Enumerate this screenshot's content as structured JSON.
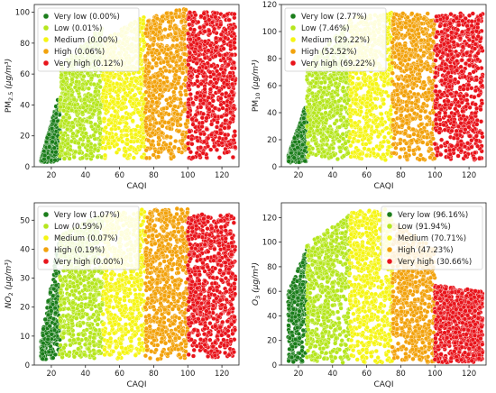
{
  "chart_data": [
    {
      "type": "scatter",
      "xlabel": "CAQI",
      "ylabel": "PM2.5 (μg/m³)",
      "ylabel_main": "PM",
      "ylabel_sub": "2.5",
      "ylabel_unit": " (μg/m³)",
      "xlim": [
        10,
        130
      ],
      "ylim": [
        0,
        105
      ],
      "xticks": [
        "20",
        "40",
        "60",
        "80",
        "100",
        "120"
      ],
      "yticks": [
        "0",
        "20",
        "40",
        "60",
        "80",
        "100"
      ],
      "legend_position": "top-left",
      "categories": [
        {
          "name": "Very low",
          "percent": "(0.00%)",
          "color": "#1a7d1a",
          "x": [
            14,
            25
          ],
          "ymin": 3,
          "ymax_start": 5,
          "ymax_end": 48
        },
        {
          "name": "Low",
          "percent": "(0.01%)",
          "color": "#b5e61d",
          "x": [
            25,
            50
          ],
          "ymin": 5,
          "ymax_start": 65,
          "ymax_end": 92
        },
        {
          "name": "Medium",
          "percent": "(0.00%)",
          "color": "#f5f514",
          "x": [
            50,
            75
          ],
          "ymin": 5,
          "ymax_start": 82,
          "ymax_end": 98
        },
        {
          "name": "High",
          "percent": "(0.06%)",
          "color": "#f2a20c",
          "x": [
            75,
            100
          ],
          "ymin": 5,
          "ymax_start": 96,
          "ymax_end": 103
        },
        {
          "name": "Very high",
          "percent": "(0.12%)",
          "color": "#e8141b",
          "x": [
            100,
            128
          ],
          "ymin": 5,
          "ymax_start": 100,
          "ymax_end": 100
        }
      ]
    },
    {
      "type": "scatter",
      "xlabel": "CAQI",
      "ylabel": "PM10 (μg/m³)",
      "ylabel_main": "PM",
      "ylabel_sub": "10",
      "ylabel_unit": " (μg/m³)",
      "xlim": [
        10,
        130
      ],
      "ylim": [
        0,
        120
      ],
      "xticks": [
        "20",
        "40",
        "60",
        "80",
        "100",
        "120"
      ],
      "yticks": [
        "0",
        "20",
        "40",
        "60",
        "80",
        "100",
        "120"
      ],
      "legend_position": "top-left",
      "categories": [
        {
          "name": "Very low",
          "percent": "(2.77%)",
          "color": "#1a7d1a",
          "x": [
            14,
            25
          ],
          "ymin": 3,
          "ymax_start": 8,
          "ymax_end": 48
        },
        {
          "name": "Low",
          "percent": "(7.46%)",
          "color": "#b5e61d",
          "x": [
            25,
            50
          ],
          "ymin": 5,
          "ymax_start": 75,
          "ymax_end": 108
        },
        {
          "name": "Medium",
          "percent": "(29.22%)",
          "color": "#f5f514",
          "x": [
            50,
            75
          ],
          "ymin": 5,
          "ymax_start": 110,
          "ymax_end": 114
        },
        {
          "name": "High",
          "percent": "(52.52%)",
          "color": "#f2a20c",
          "x": [
            75,
            100
          ],
          "ymin": 5,
          "ymax_start": 114,
          "ymax_end": 114
        },
        {
          "name": "Very high",
          "percent": "(69.22%)",
          "color": "#e8141b",
          "x": [
            100,
            128
          ],
          "ymin": 5,
          "ymax_start": 114,
          "ymax_end": 114
        }
      ]
    },
    {
      "type": "scatter",
      "xlabel": "CAQI",
      "ylabel": "NO2 (μg/m³)",
      "ylabel_main": "NO",
      "ylabel_sub": "2",
      "ylabel_unit": " (μg/m³)",
      "xlim": [
        10,
        130
      ],
      "ylim": [
        0,
        56
      ],
      "xticks": [
        "20",
        "40",
        "60",
        "80",
        "100",
        "120"
      ],
      "yticks": [
        "0",
        "10",
        "20",
        "30",
        "40",
        "50"
      ],
      "legend_position": "top-left",
      "categories": [
        {
          "name": "Very low",
          "percent": "(1.07%)",
          "color": "#1a7d1a",
          "x": [
            14,
            25
          ],
          "ymin": 2,
          "ymax_start": 8,
          "ymax_end": 45
        },
        {
          "name": "Low",
          "percent": "(0.59%)",
          "color": "#b5e61d",
          "x": [
            25,
            50
          ],
          "ymin": 2,
          "ymax_start": 45,
          "ymax_end": 52
        },
        {
          "name": "Medium",
          "percent": "(0.07%)",
          "color": "#f5f514",
          "x": [
            50,
            75
          ],
          "ymin": 2,
          "ymax_start": 52,
          "ymax_end": 54
        },
        {
          "name": "High",
          "percent": "(0.19%)",
          "color": "#f2a20c",
          "x": [
            75,
            100
          ],
          "ymin": 2,
          "ymax_start": 54,
          "ymax_end": 54
        },
        {
          "name": "Very high",
          "percent": "(0.00%)",
          "color": "#e8141b",
          "x": [
            100,
            128
          ],
          "ymin": 2,
          "ymax_start": 52,
          "ymax_end": 52
        }
      ]
    },
    {
      "type": "scatter",
      "xlabel": "CAQI",
      "ylabel": "O3 (μg/m³)",
      "ylabel_main": "O",
      "ylabel_sub": "3",
      "ylabel_unit": " (μg/m³)",
      "xlim": [
        10,
        130
      ],
      "ylim": [
        0,
        132
      ],
      "xticks": [
        "20",
        "40",
        "60",
        "80",
        "100",
        "120"
      ],
      "yticks": [
        "0",
        "20",
        "40",
        "60",
        "80",
        "100",
        "120"
      ],
      "legend_position": "top-right",
      "categories": [
        {
          "name": "Very low",
          "percent": "(96.16%)",
          "color": "#1a7d1a",
          "x": [
            14,
            25
          ],
          "ymin": 2,
          "ymax_start": 60,
          "ymax_end": 95
        },
        {
          "name": "Low",
          "percent": "(91.94%)",
          "color": "#b5e61d",
          "x": [
            25,
            50
          ],
          "ymin": 2,
          "ymax_start": 98,
          "ymax_end": 122
        },
        {
          "name": "Medium",
          "percent": "(70.71%)",
          "color": "#f5f514",
          "x": [
            50,
            75
          ],
          "ymin": 2,
          "ymax_start": 125,
          "ymax_end": 128
        },
        {
          "name": "High",
          "percent": "(47.23%)",
          "color": "#f2a20c",
          "x": [
            75,
            100
          ],
          "ymin": 2,
          "ymax_start": 118,
          "ymax_end": 95
        },
        {
          "name": "Very high",
          "percent": "(30.66%)",
          "color": "#e8141b",
          "x": [
            100,
            128
          ],
          "ymin": 2,
          "ymax_start": 65,
          "ymax_end": 60
        }
      ]
    }
  ]
}
